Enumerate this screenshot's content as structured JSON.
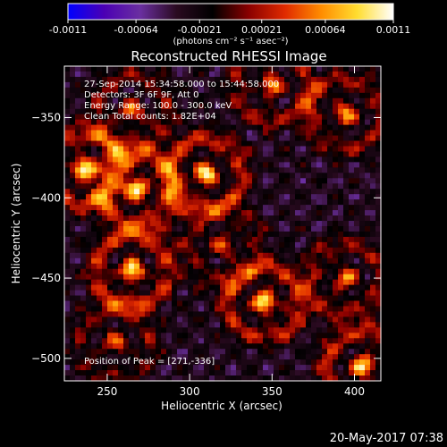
{
  "chart_data": {
    "type": "heatmap",
    "title": "Reconstructed RHESSI Image",
    "xlabel": "Heliocentric X (arcsec)",
    "ylabel": "Heliocentric Y (arcsec)",
    "xlim": [
      224,
      416
    ],
    "ylim": [
      -514,
      -318
    ],
    "x_ticks": [
      250,
      300,
      350,
      400
    ],
    "y_ticks": [
      -350,
      -400,
      -450,
      -500
    ],
    "colormap": [
      "#0000ff",
      "#4b00b4",
      "#6a2fa0",
      "#2a0a20",
      "#000000",
      "#8a0000",
      "#e02a00",
      "#ff8c00",
      "#ffdd30",
      "#ffffff"
    ],
    "colorbar": {
      "ticks": [
        "-0.0011",
        "-0.00064",
        "-0.00021",
        "0.00021",
        "0.00064",
        "0.0011"
      ],
      "range": [
        -0.0011,
        0.0011
      ],
      "units": "(photons cm⁻² s⁻¹ asec⁻²)"
    },
    "annotations": [
      "27-Sep-2014 15:34:58.000 to 15:44:58.000",
      "Detectors: 3F 6F 9F, Att 0",
      "Energy Range: 100.0 - 300.0 keV",
      "Clean     Total counts: 1.82E+04"
    ],
    "peak": {
      "label": "Position of Peak = [271,-336]",
      "x": 271,
      "y": -336
    },
    "sources": [
      {
        "x": 236,
        "y": -382,
        "amp": 1.0
      },
      {
        "x": 265,
        "y": -345,
        "amp": 0.65
      },
      {
        "x": 268,
        "y": -395,
        "amp": 0.9
      },
      {
        "x": 265,
        "y": -445,
        "amp": 0.95
      },
      {
        "x": 255,
        "y": -490,
        "amp": 0.6
      },
      {
        "x": 310,
        "y": -385,
        "amp": 0.95
      },
      {
        "x": 320,
        "y": -430,
        "amp": 0.5
      },
      {
        "x": 345,
        "y": -465,
        "amp": 0.95
      },
      {
        "x": 350,
        "y": -330,
        "amp": 0.75
      },
      {
        "x": 395,
        "y": -348,
        "amp": 0.75
      },
      {
        "x": 395,
        "y": -450,
        "amp": 0.7
      },
      {
        "x": 405,
        "y": -505,
        "amp": 0.95
      }
    ]
  },
  "footer": {
    "timestamp": "20-May-2017 07:38"
  }
}
